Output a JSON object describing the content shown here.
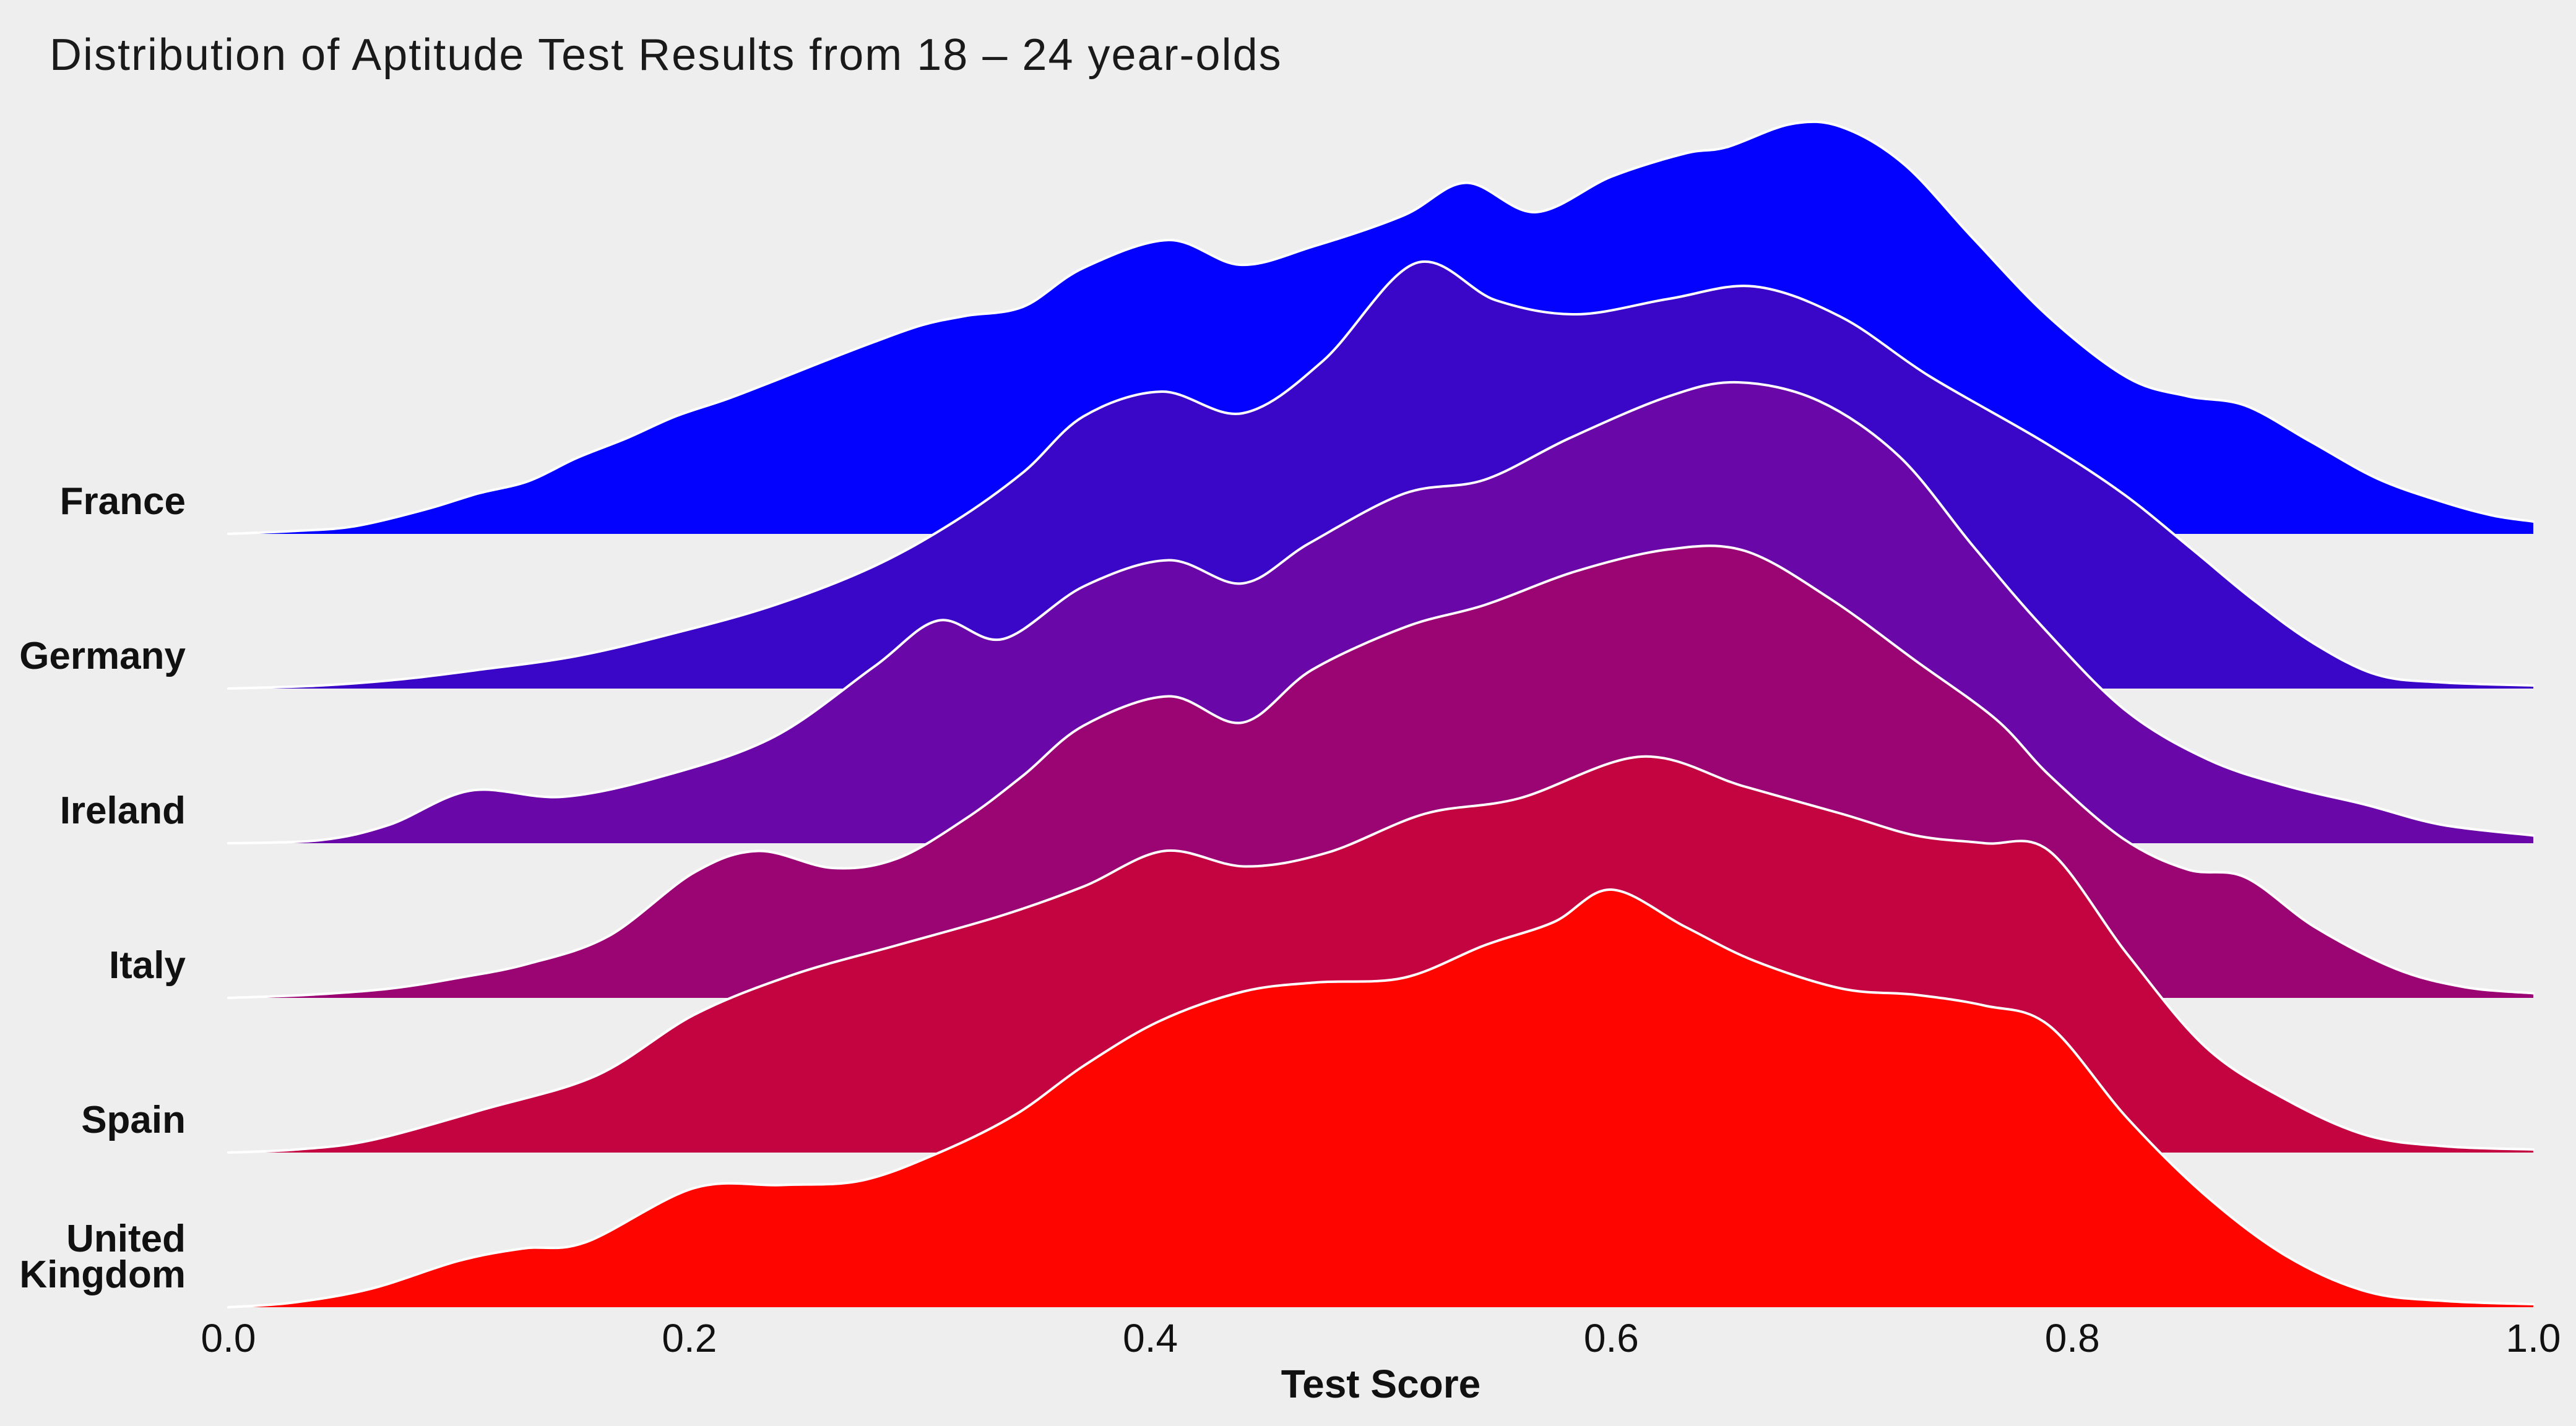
{
  "title": "Distribution of Aptitude Test Results from 18 – 24 year-olds",
  "chart": {
    "background": "#efeeee",
    "outline_color": "#ffffff",
    "text_color": "#141414",
    "xlabel": "Test Score",
    "x_ticks": [
      "0.0",
      "0.2",
      "0.4",
      "0.6",
      "0.8",
      "1.0"
    ],
    "x_tick_values": [
      0.0,
      0.2,
      0.4,
      0.6,
      0.8,
      1.0
    ]
  },
  "chart_data": {
    "type": "area",
    "subtype": "ridgeline-joyplot",
    "title": "Distribution of Aptitude Test Results from 18 – 24 year-olds",
    "xlabel": "Test Score",
    "ylabel": "",
    "xlim": [
      0.0,
      1.0
    ],
    "grid": false,
    "legend": "none (row labels on left)",
    "categories": [
      "France",
      "Germany",
      "Ireland",
      "Italy",
      "Spain",
      "United Kingdom"
    ],
    "colors": [
      "#0202fe",
      "#3a06c8",
      "#6a07a8",
      "#9a0473",
      "#c40341",
      "#fe0500"
    ],
    "density_units": "arbitrary kde density; 1.0 = vertical spacing between adjacent country baselines (curves overlap rows above)",
    "series": [
      {
        "name": "France",
        "label_lines": [
          "France"
        ],
        "color": "#0202fe",
        "points": [
          [
            0,
            0
          ],
          [
            0.03,
            0.02
          ],
          [
            0.055,
            0.05
          ],
          [
            0.086,
            0.16
          ],
          [
            0.108,
            0.26
          ],
          [
            0.13,
            0.34
          ],
          [
            0.151,
            0.49
          ],
          [
            0.173,
            0.62
          ],
          [
            0.194,
            0.76
          ],
          [
            0.216,
            0.87
          ],
          [
            0.237,
            0.99
          ],
          [
            0.259,
            1.12
          ],
          [
            0.28,
            1.24
          ],
          [
            0.301,
            1.35
          ],
          [
            0.32,
            1.41
          ],
          [
            0.345,
            1.47
          ],
          [
            0.371,
            1.72
          ],
          [
            0.408,
            1.9
          ],
          [
            0.439,
            1.74
          ],
          [
            0.471,
            1.86
          ],
          [
            0.51,
            2.06
          ],
          [
            0.537,
            2.27
          ],
          [
            0.567,
            2.08
          ],
          [
            0.6,
            2.31
          ],
          [
            0.632,
            2.46
          ],
          [
            0.65,
            2.5
          ],
          [
            0.678,
            2.65
          ],
          [
            0.7,
            2.63
          ],
          [
            0.727,
            2.39
          ],
          [
            0.757,
            1.91
          ],
          [
            0.79,
            1.4
          ],
          [
            0.824,
            1.01
          ],
          [
            0.85,
            0.89
          ],
          [
            0.875,
            0.83
          ],
          [
            0.903,
            0.6
          ],
          [
            0.932,
            0.36
          ],
          [
            0.96,
            0.21
          ],
          [
            0.982,
            0.12
          ],
          [
            1.0,
            0.08
          ]
        ]
      },
      {
        "name": "Germany",
        "label_lines": [
          "Germany"
        ],
        "color": "#3a06c8",
        "points": [
          [
            0,
            0
          ],
          [
            0.04,
            0.02
          ],
          [
            0.075,
            0.06
          ],
          [
            0.108,
            0.12
          ],
          [
            0.151,
            0.21
          ],
          [
            0.194,
            0.36
          ],
          [
            0.237,
            0.54
          ],
          [
            0.28,
            0.79
          ],
          [
            0.315,
            1.08
          ],
          [
            0.345,
            1.4
          ],
          [
            0.371,
            1.76
          ],
          [
            0.405,
            1.92
          ],
          [
            0.44,
            1.78
          ],
          [
            0.475,
            2.12
          ],
          [
            0.515,
            2.75
          ],
          [
            0.55,
            2.51
          ],
          [
            0.585,
            2.42
          ],
          [
            0.625,
            2.52
          ],
          [
            0.662,
            2.6
          ],
          [
            0.7,
            2.4
          ],
          [
            0.738,
            2.02
          ],
          [
            0.787,
            1.6
          ],
          [
            0.822,
            1.26
          ],
          [
            0.852,
            0.9
          ],
          [
            0.878,
            0.58
          ],
          [
            0.905,
            0.29
          ],
          [
            0.932,
            0.09
          ],
          [
            0.96,
            0.04
          ],
          [
            1.0,
            0.02
          ]
        ]
      },
      {
        "name": "Ireland",
        "label_lines": [
          "Ireland"
        ],
        "color": "#6a07a8",
        "points": [
          [
            0,
            0
          ],
          [
            0.04,
            0.02
          ],
          [
            0.07,
            0.12
          ],
          [
            0.105,
            0.34
          ],
          [
            0.145,
            0.3
          ],
          [
            0.19,
            0.44
          ],
          [
            0.237,
            0.69
          ],
          [
            0.28,
            1.14
          ],
          [
            0.308,
            1.44
          ],
          [
            0.336,
            1.32
          ],
          [
            0.371,
            1.66
          ],
          [
            0.408,
            1.83
          ],
          [
            0.44,
            1.68
          ],
          [
            0.469,
            1.94
          ],
          [
            0.51,
            2.26
          ],
          [
            0.545,
            2.35
          ],
          [
            0.582,
            2.62
          ],
          [
            0.625,
            2.89
          ],
          [
            0.655,
            2.98
          ],
          [
            0.69,
            2.86
          ],
          [
            0.725,
            2.5
          ],
          [
            0.757,
            1.92
          ],
          [
            0.787,
            1.4
          ],
          [
            0.823,
            0.86
          ],
          [
            0.859,
            0.54
          ],
          [
            0.893,
            0.37
          ],
          [
            0.927,
            0.25
          ],
          [
            0.96,
            0.12
          ],
          [
            1.0,
            0.05
          ]
        ]
      },
      {
        "name": "Italy",
        "label_lines": [
          "Italy"
        ],
        "color": "#9a0473",
        "points": [
          [
            0,
            0
          ],
          [
            0.035,
            0.02
          ],
          [
            0.07,
            0.06
          ],
          [
            0.1,
            0.13
          ],
          [
            0.13,
            0.22
          ],
          [
            0.165,
            0.4
          ],
          [
            0.202,
            0.81
          ],
          [
            0.23,
            0.95
          ],
          [
            0.262,
            0.84
          ],
          [
            0.29,
            0.9
          ],
          [
            0.32,
            1.16
          ],
          [
            0.345,
            1.44
          ],
          [
            0.371,
            1.76
          ],
          [
            0.408,
            1.95
          ],
          [
            0.44,
            1.78
          ],
          [
            0.47,
            2.12
          ],
          [
            0.511,
            2.4
          ],
          [
            0.545,
            2.54
          ],
          [
            0.585,
            2.76
          ],
          [
            0.625,
            2.9
          ],
          [
            0.658,
            2.89
          ],
          [
            0.695,
            2.58
          ],
          [
            0.732,
            2.18
          ],
          [
            0.767,
            1.8
          ],
          [
            0.79,
            1.44
          ],
          [
            0.822,
            1.03
          ],
          [
            0.85,
            0.83
          ],
          [
            0.875,
            0.78
          ],
          [
            0.905,
            0.46
          ],
          [
            0.94,
            0.19
          ],
          [
            0.97,
            0.07
          ],
          [
            1.0,
            0.03
          ]
        ]
      },
      {
        "name": "Spain",
        "label_lines": [
          "Spain"
        ],
        "color": "#c40341",
        "points": [
          [
            0,
            0
          ],
          [
            0.03,
            0.02
          ],
          [
            0.062,
            0.08
          ],
          [
            0.111,
            0.28
          ],
          [
            0.16,
            0.5
          ],
          [
            0.202,
            0.89
          ],
          [
            0.245,
            1.15
          ],
          [
            0.29,
            1.34
          ],
          [
            0.335,
            1.53
          ],
          [
            0.371,
            1.72
          ],
          [
            0.406,
            1.95
          ],
          [
            0.441,
            1.85
          ],
          [
            0.477,
            1.94
          ],
          [
            0.519,
            2.19
          ],
          [
            0.56,
            2.29
          ],
          [
            0.613,
            2.56
          ],
          [
            0.657,
            2.37
          ],
          [
            0.7,
            2.19
          ],
          [
            0.732,
            2.05
          ],
          [
            0.762,
            2.0
          ],
          [
            0.79,
            1.95
          ],
          [
            0.824,
            1.28
          ],
          [
            0.858,
            0.68
          ],
          [
            0.893,
            0.34
          ],
          [
            0.928,
            0.11
          ],
          [
            0.962,
            0.04
          ],
          [
            1.0,
            0.02
          ]
        ]
      },
      {
        "name": "United Kingdom",
        "label_lines": [
          "United",
          "Kingdom"
        ],
        "color": "#fe0500",
        "points": [
          [
            0,
            0
          ],
          [
            0.028,
            0.03
          ],
          [
            0.062,
            0.12
          ],
          [
            0.1,
            0.3
          ],
          [
            0.128,
            0.38
          ],
          [
            0.155,
            0.42
          ],
          [
            0.202,
            0.77
          ],
          [
            0.24,
            0.79
          ],
          [
            0.275,
            0.82
          ],
          [
            0.31,
            1.01
          ],
          [
            0.342,
            1.25
          ],
          [
            0.371,
            1.56
          ],
          [
            0.404,
            1.85
          ],
          [
            0.44,
            2.04
          ],
          [
            0.472,
            2.1
          ],
          [
            0.51,
            2.13
          ],
          [
            0.545,
            2.34
          ],
          [
            0.575,
            2.49
          ],
          [
            0.6,
            2.7
          ],
          [
            0.632,
            2.46
          ],
          [
            0.662,
            2.24
          ],
          [
            0.7,
            2.06
          ],
          [
            0.732,
            2.02
          ],
          [
            0.762,
            1.95
          ],
          [
            0.79,
            1.82
          ],
          [
            0.824,
            1.22
          ],
          [
            0.858,
            0.72
          ],
          [
            0.893,
            0.33
          ],
          [
            0.928,
            0.1
          ],
          [
            0.962,
            0.04
          ],
          [
            1.0,
            0.02
          ]
        ]
      }
    ]
  }
}
